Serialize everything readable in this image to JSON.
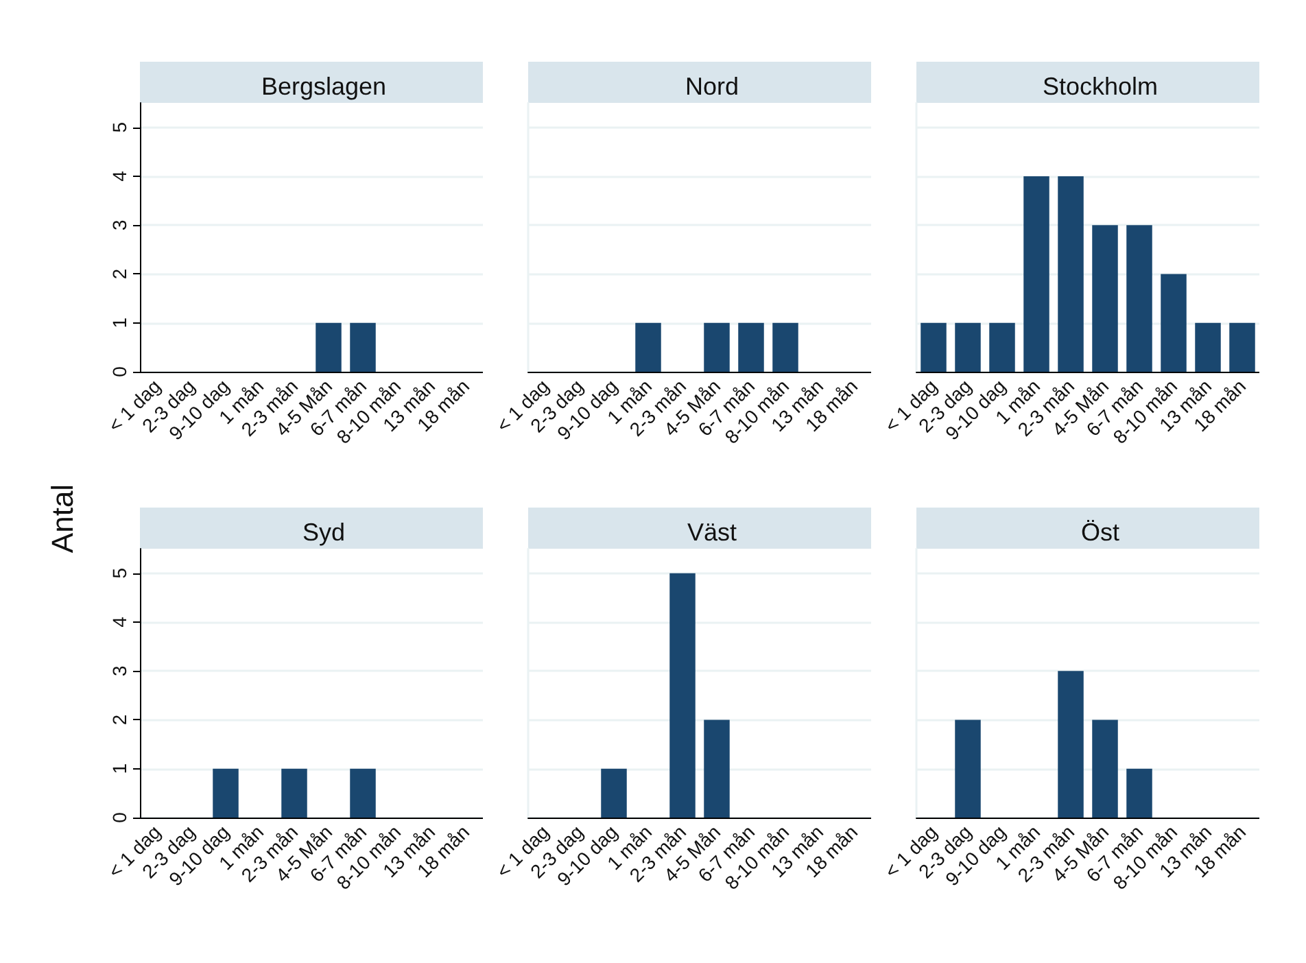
{
  "chart_data": [
    {
      "type": "bar",
      "title": "Bergslagen",
      "ylabel": "Antal",
      "categories": [
        "< 1 dag",
        "2-3 dag",
        "9-10 dag",
        "1 mån",
        "2-3 mån",
        "4-5 Mån",
        "6-7 mån",
        "8-10 mån",
        "13 mån",
        "18 mån"
      ],
      "values": [
        0,
        0,
        0,
        0,
        0,
        1,
        1,
        0,
        0,
        0
      ],
      "color": "#1a476f",
      "ylim": [
        0,
        5.5
      ],
      "yticks": [
        0,
        1,
        2,
        3,
        4,
        5
      ],
      "grid": "y"
    },
    {
      "type": "bar",
      "title": "Nord",
      "categories": [
        "< 1 dag",
        "2-3 dag",
        "9-10 dag",
        "1 mån",
        "2-3 mån",
        "4-5 Mån",
        "6-7 mån",
        "8-10 mån",
        "13 mån",
        "18 mån"
      ],
      "values": [
        0,
        0,
        0,
        1,
        0,
        1,
        1,
        1,
        0,
        0
      ],
      "color": "#1a476f",
      "ylim": [
        0,
        5.5
      ],
      "yticks": [
        0,
        1,
        2,
        3,
        4,
        5
      ],
      "grid": "y",
      "tick_labels": "x"
    },
    {
      "type": "bar",
      "title": "Stockholm",
      "categories": [
        "< 1 dag",
        "2-3 dag",
        "9-10 dag",
        "1 mån",
        "2-3 mån",
        "4-5 Mån",
        "6-7 mån",
        "8-10 mån",
        "13 mån",
        "18 mån"
      ],
      "values": [
        1,
        1,
        1,
        4,
        4,
        3,
        3,
        2,
        1,
        1
      ],
      "color": "#1a476f",
      "ylim": [
        0,
        5.5
      ],
      "yticks": [
        0,
        1,
        2,
        3,
        4,
        5
      ],
      "grid": "y",
      "tick_labels": "x"
    },
    {
      "type": "bar",
      "title": "Syd",
      "categories": [
        "< 1 dag",
        "2-3 dag",
        "9-10 dag",
        "1 mån",
        "2-3 mån",
        "4-5 Mån",
        "6-7 mån",
        "8-10 mån",
        "13 mån",
        "18 mån"
      ],
      "values": [
        0,
        0,
        1,
        0,
        1,
        0,
        1,
        0,
        0,
        0
      ],
      "color": "#1a476f",
      "ylim": [
        0,
        5.5
      ],
      "yticks": [
        0,
        1,
        2,
        3,
        4,
        5
      ],
      "grid": "y"
    },
    {
      "type": "bar",
      "title": "Väst",
      "categories": [
        "< 1 dag",
        "2-3 dag",
        "9-10 dag",
        "1 mån",
        "2-3 mån",
        "4-5 Mån",
        "6-7 mån",
        "8-10 mån",
        "13 mån",
        "18 mån"
      ],
      "values": [
        0,
        0,
        1,
        0,
        5,
        2,
        0,
        0,
        0,
        0
      ],
      "color": "#1a476f",
      "ylim": [
        0,
        5.5
      ],
      "yticks": [
        0,
        1,
        2,
        3,
        4,
        5
      ],
      "grid": "y",
      "tick_labels": "x"
    },
    {
      "type": "bar",
      "title": "Öst",
      "categories": [
        "< 1 dag",
        "2-3 dag",
        "9-10 dag",
        "1 mån",
        "2-3 mån",
        "4-5 Mån",
        "6-7 mån",
        "8-10 mån",
        "13 mån",
        "18 mån"
      ],
      "values": [
        0,
        2,
        0,
        0,
        3,
        2,
        1,
        0,
        0,
        0
      ],
      "color": "#1a476f",
      "ylim": [
        0,
        5.5
      ],
      "yticks": [
        0,
        1,
        2,
        3,
        4,
        5
      ],
      "grid": "y",
      "tick_labels": "x"
    }
  ]
}
